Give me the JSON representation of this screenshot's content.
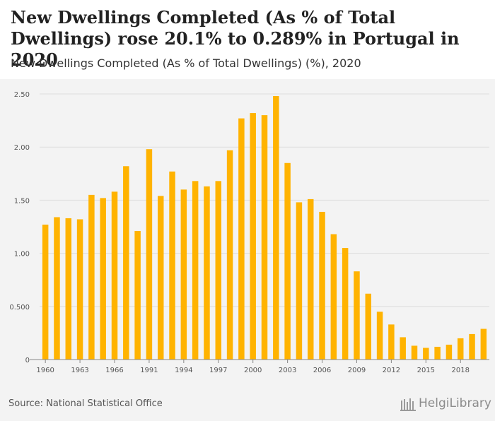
{
  "header": {
    "title": "New Dwellings Completed (As % of Total Dwellings) rose 20.1% to 0.289% in Portugal in 2020",
    "subtitle": "New Dwellings Completed (As % of Total Dwellings) (%), 2020"
  },
  "footer": {
    "source": "Source: National Statistical Office",
    "logo": "HelgiLibrary"
  },
  "colors": {
    "bar": "#FFB300",
    "grid": "#dddddd",
    "axis": "#888888",
    "panel": "#f3f3f3"
  },
  "chart_data": {
    "type": "bar",
    "title": "New Dwellings Completed (As % of Total Dwellings) rose 20.1% to 0.289% in Portugal in 2020",
    "subtitle": "New Dwellings Completed (As % of Total Dwellings) (%), 2020",
    "xlabel": "",
    "ylabel": "",
    "ylim": [
      0,
      2.5
    ],
    "yticks": [
      0,
      0.5,
      1.0,
      1.5,
      2.0,
      2.5
    ],
    "ytick_labels": [
      "0",
      "0.500",
      "1.00",
      "1.50",
      "2.00",
      "2.50"
    ],
    "xtick_labels": [
      "1960",
      "1963",
      "1966",
      "1991",
      "1994",
      "1997",
      "2000",
      "2003",
      "2006",
      "2009",
      "2012",
      "2015",
      "2018"
    ],
    "grid": true,
    "categories": [
      "1960",
      "1961",
      "1962",
      "1963",
      "1964",
      "1965",
      "1966",
      "1967",
      "1968",
      "1991",
      "1992",
      "1993",
      "1994",
      "1995",
      "1996",
      "1997",
      "1998",
      "1999",
      "2000",
      "2001",
      "2002",
      "2003",
      "2004",
      "2005",
      "2006",
      "2007",
      "2008",
      "2009",
      "2010",
      "2011",
      "2012",
      "2013",
      "2014",
      "2015",
      "2016",
      "2017",
      "2018",
      "2019",
      "2020"
    ],
    "values": [
      1.27,
      1.34,
      1.33,
      1.32,
      1.55,
      1.52,
      1.58,
      1.82,
      1.21,
      1.98,
      1.54,
      1.77,
      1.6,
      1.68,
      1.63,
      1.68,
      1.97,
      2.27,
      2.32,
      2.3,
      2.48,
      1.85,
      1.48,
      1.51,
      1.39,
      1.18,
      1.05,
      0.83,
      0.62,
      0.45,
      0.33,
      0.21,
      0.13,
      0.11,
      0.12,
      0.14,
      0.2,
      0.24,
      0.289
    ]
  }
}
